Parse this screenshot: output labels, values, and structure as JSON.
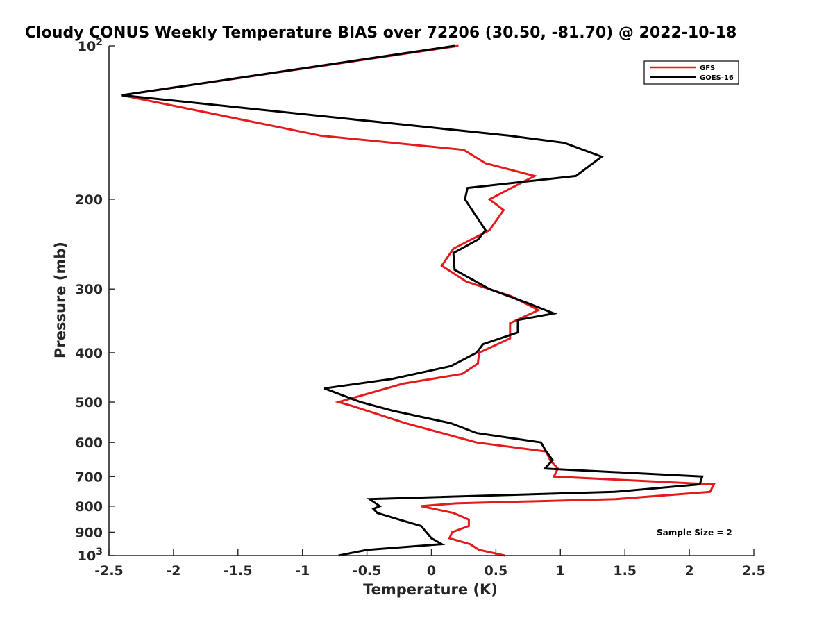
{
  "chart_data": {
    "type": "line",
    "orientation": "vertical-profile",
    "title": "Cloudy CONUS Weekly Temperature BIAS over 72206 (30.50, -81.70) @ 2022-10-18",
    "xlabel": "Temperature (K)",
    "ylabel": "Pressure (mb)",
    "xlim": [
      -2.5,
      2.5
    ],
    "ylim": [
      100,
      1000
    ],
    "yscale": "log",
    "y_reversed": true,
    "x_ticks": [
      -2.5,
      -2,
      -1.5,
      -1,
      -0.5,
      0,
      0.5,
      1,
      1.5,
      2,
      2.5
    ],
    "x_tick_labels": [
      "-2.5",
      "-2",
      "-1.5",
      "-1",
      "-0.5",
      "0",
      "0.5",
      "1",
      "1.5",
      "2",
      "2.5"
    ],
    "y_ticks": [
      100,
      200,
      300,
      400,
      500,
      600,
      700,
      800,
      900,
      1000
    ],
    "y_tick_labels": [
      {
        "base": "10",
        "exp": "2"
      },
      {
        "base": "200"
      },
      {
        "base": "300"
      },
      {
        "base": "400"
      },
      {
        "base": "500"
      },
      {
        "base": "600"
      },
      {
        "base": "700"
      },
      {
        "base": "800"
      },
      {
        "base": "900"
      },
      {
        "base": "10",
        "exp": "3"
      }
    ],
    "legend_position": "top-right",
    "annotation": "Sample Size = 2",
    "series": [
      {
        "name": "GFS",
        "color": "#e41a1c",
        "values": [
          0.21,
          -2.4,
          -0.86,
          0.25,
          0.42,
          0.8,
          0.45,
          0.56,
          0.45,
          0.17,
          0.08,
          0.27,
          0.62,
          0.83,
          0.61,
          0.61,
          0.37,
          0.36,
          0.24,
          -0.22,
          -0.72,
          -0.6,
          -0.2,
          0.35,
          0.89,
          0.92,
          0.98,
          0.95,
          2.19,
          2.16,
          1.43,
          0.19,
          -0.08,
          0.17,
          0.29,
          0.29,
          0.16,
          0.14,
          0.3,
          0.37,
          0.57
        ],
        "pressure": [
          100,
          125,
          150,
          160,
          170,
          180,
          200,
          210,
          230,
          250,
          270,
          290,
          310,
          330,
          350,
          375,
          400,
          420,
          440,
          460,
          500,
          510,
          550,
          600,
          625,
          650,
          675,
          700,
          725,
          750,
          775,
          790,
          800,
          825,
          850,
          875,
          900,
          925,
          950,
          975,
          1000
        ],
        "pressure_note": "pressure levels in mb"
      },
      {
        "name": "GOES-16",
        "color": "#000000",
        "values": [
          0.18,
          -2.4,
          0.6,
          1.03,
          1.32,
          1.12,
          0.28,
          0.26,
          0.42,
          0.36,
          0.17,
          0.18,
          0.45,
          0.75,
          0.95,
          0.67,
          0.67,
          0.4,
          0.35,
          0.15,
          -0.3,
          -0.83,
          -0.55,
          -0.3,
          0.15,
          0.35,
          0.85,
          0.89,
          0.94,
          0.88,
          2.1,
          2.08,
          1.42,
          -0.48,
          -0.4,
          -0.45,
          -0.42,
          -0.25,
          -0.08,
          0.0,
          0.08,
          -0.5,
          -0.72
        ],
        "pressure": [
          100,
          125,
          150,
          155,
          165,
          180,
          190,
          200,
          230,
          240,
          255,
          275,
          300,
          320,
          335,
          345,
          365,
          385,
          400,
          425,
          450,
          470,
          500,
          520,
          550,
          575,
          600,
          625,
          650,
          675,
          700,
          725,
          750,
          775,
          800,
          810,
          825,
          850,
          875,
          925,
          950,
          975,
          1000
        ],
        "pressure_note": "pressure levels in mb"
      }
    ]
  }
}
